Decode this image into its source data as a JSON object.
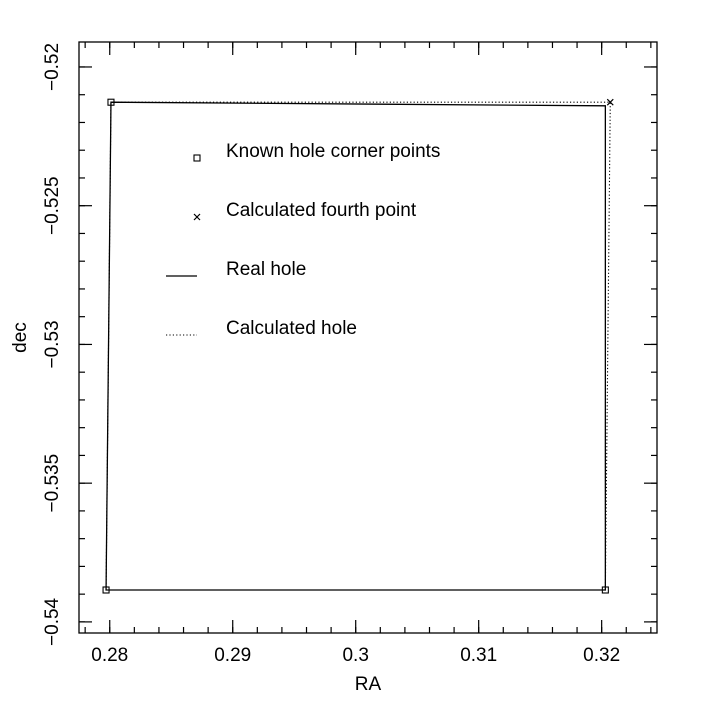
{
  "chart_data": {
    "type": "scatter",
    "title": "",
    "xlabel": "RA",
    "ylabel": "dec",
    "xlim": [
      0.2775,
      0.3245
    ],
    "ylim": [
      -0.5404,
      -0.5191
    ],
    "grid": false,
    "legend_position": "upper-left inside",
    "x_ticks": [
      {
        "value": 0.28,
        "label": "0.28"
      },
      {
        "value": 0.29,
        "label": "0.29"
      },
      {
        "value": 0.3,
        "label": "0.3"
      },
      {
        "value": 0.31,
        "label": "0.31"
      },
      {
        "value": 0.32,
        "label": "0.32"
      }
    ],
    "y_ticks": [
      {
        "value": -0.52,
        "label": "−0.52"
      },
      {
        "value": -0.525,
        "label": "−0.525"
      },
      {
        "value": -0.53,
        "label": "−0.53"
      },
      {
        "value": -0.535,
        "label": "−0.535"
      },
      {
        "value": -0.54,
        "label": "−0.54"
      }
    ],
    "x_minor_step": 0.002,
    "y_minor_step": 0.001,
    "series": [
      {
        "name": "Known hole corner points",
        "kind": "markers",
        "marker": "square",
        "points": [
          [
            0.2801,
            -0.52127
          ],
          [
            0.2797,
            -0.53885
          ],
          [
            0.3203,
            -0.53885
          ]
        ]
      },
      {
        "name": "Calculated fourth point",
        "kind": "markers",
        "marker": "x",
        "points": [
          [
            0.3207,
            -0.52127
          ]
        ]
      },
      {
        "name": "Real hole",
        "kind": "line",
        "style": "solid",
        "closed": true,
        "points": [
          [
            0.2801,
            -0.52127
          ],
          [
            0.3203,
            -0.5214
          ],
          [
            0.3203,
            -0.53885
          ],
          [
            0.2797,
            -0.53885
          ]
        ]
      },
      {
        "name": "Calculated hole",
        "kind": "line",
        "style": "dotted",
        "closed": true,
        "points": [
          [
            0.2801,
            -0.52127
          ],
          [
            0.3207,
            -0.52127
          ],
          [
            0.3203,
            -0.53885
          ],
          [
            0.2797,
            -0.53885
          ]
        ]
      }
    ]
  }
}
